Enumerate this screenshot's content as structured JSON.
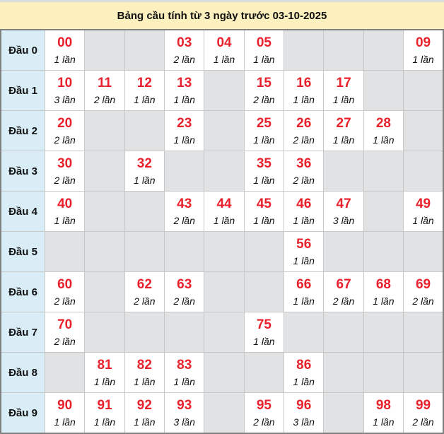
{
  "title": "Bảng cầu tính từ 3 ngày trước 03-10-2025",
  "count_suffix": "lần",
  "colors": {
    "number": "#e8212c",
    "header_bg": "#fdf0bf",
    "label_bg": "#d9edf7",
    "empty_bg": "#e1e2e4"
  },
  "rows": [
    {
      "label": "Đầu 0",
      "counts": [
        1,
        null,
        null,
        2,
        1,
        1,
        null,
        null,
        null,
        1
      ]
    },
    {
      "label": "Đầu 1",
      "counts": [
        3,
        2,
        1,
        1,
        null,
        2,
        1,
        1,
        null,
        null
      ]
    },
    {
      "label": "Đầu 2",
      "counts": [
        2,
        null,
        null,
        1,
        null,
        1,
        2,
        1,
        1,
        null
      ]
    },
    {
      "label": "Đầu 3",
      "counts": [
        2,
        null,
        1,
        null,
        null,
        1,
        2,
        null,
        null,
        null
      ]
    },
    {
      "label": "Đầu 4",
      "counts": [
        1,
        null,
        null,
        2,
        1,
        1,
        1,
        3,
        null,
        1
      ]
    },
    {
      "label": "Đầu 5",
      "counts": [
        null,
        null,
        null,
        null,
        null,
        null,
        1,
        null,
        null,
        null
      ]
    },
    {
      "label": "Đầu 6",
      "counts": [
        2,
        null,
        2,
        2,
        null,
        null,
        1,
        2,
        1,
        2
      ]
    },
    {
      "label": "Đầu 7",
      "counts": [
        2,
        null,
        null,
        null,
        null,
        1,
        null,
        null,
        null,
        null
      ]
    },
    {
      "label": "Đầu 8",
      "counts": [
        null,
        1,
        1,
        1,
        null,
        null,
        1,
        null,
        null,
        null
      ]
    },
    {
      "label": "Đầu 9",
      "counts": [
        1,
        1,
        1,
        3,
        null,
        2,
        3,
        null,
        1,
        2
      ]
    }
  ]
}
